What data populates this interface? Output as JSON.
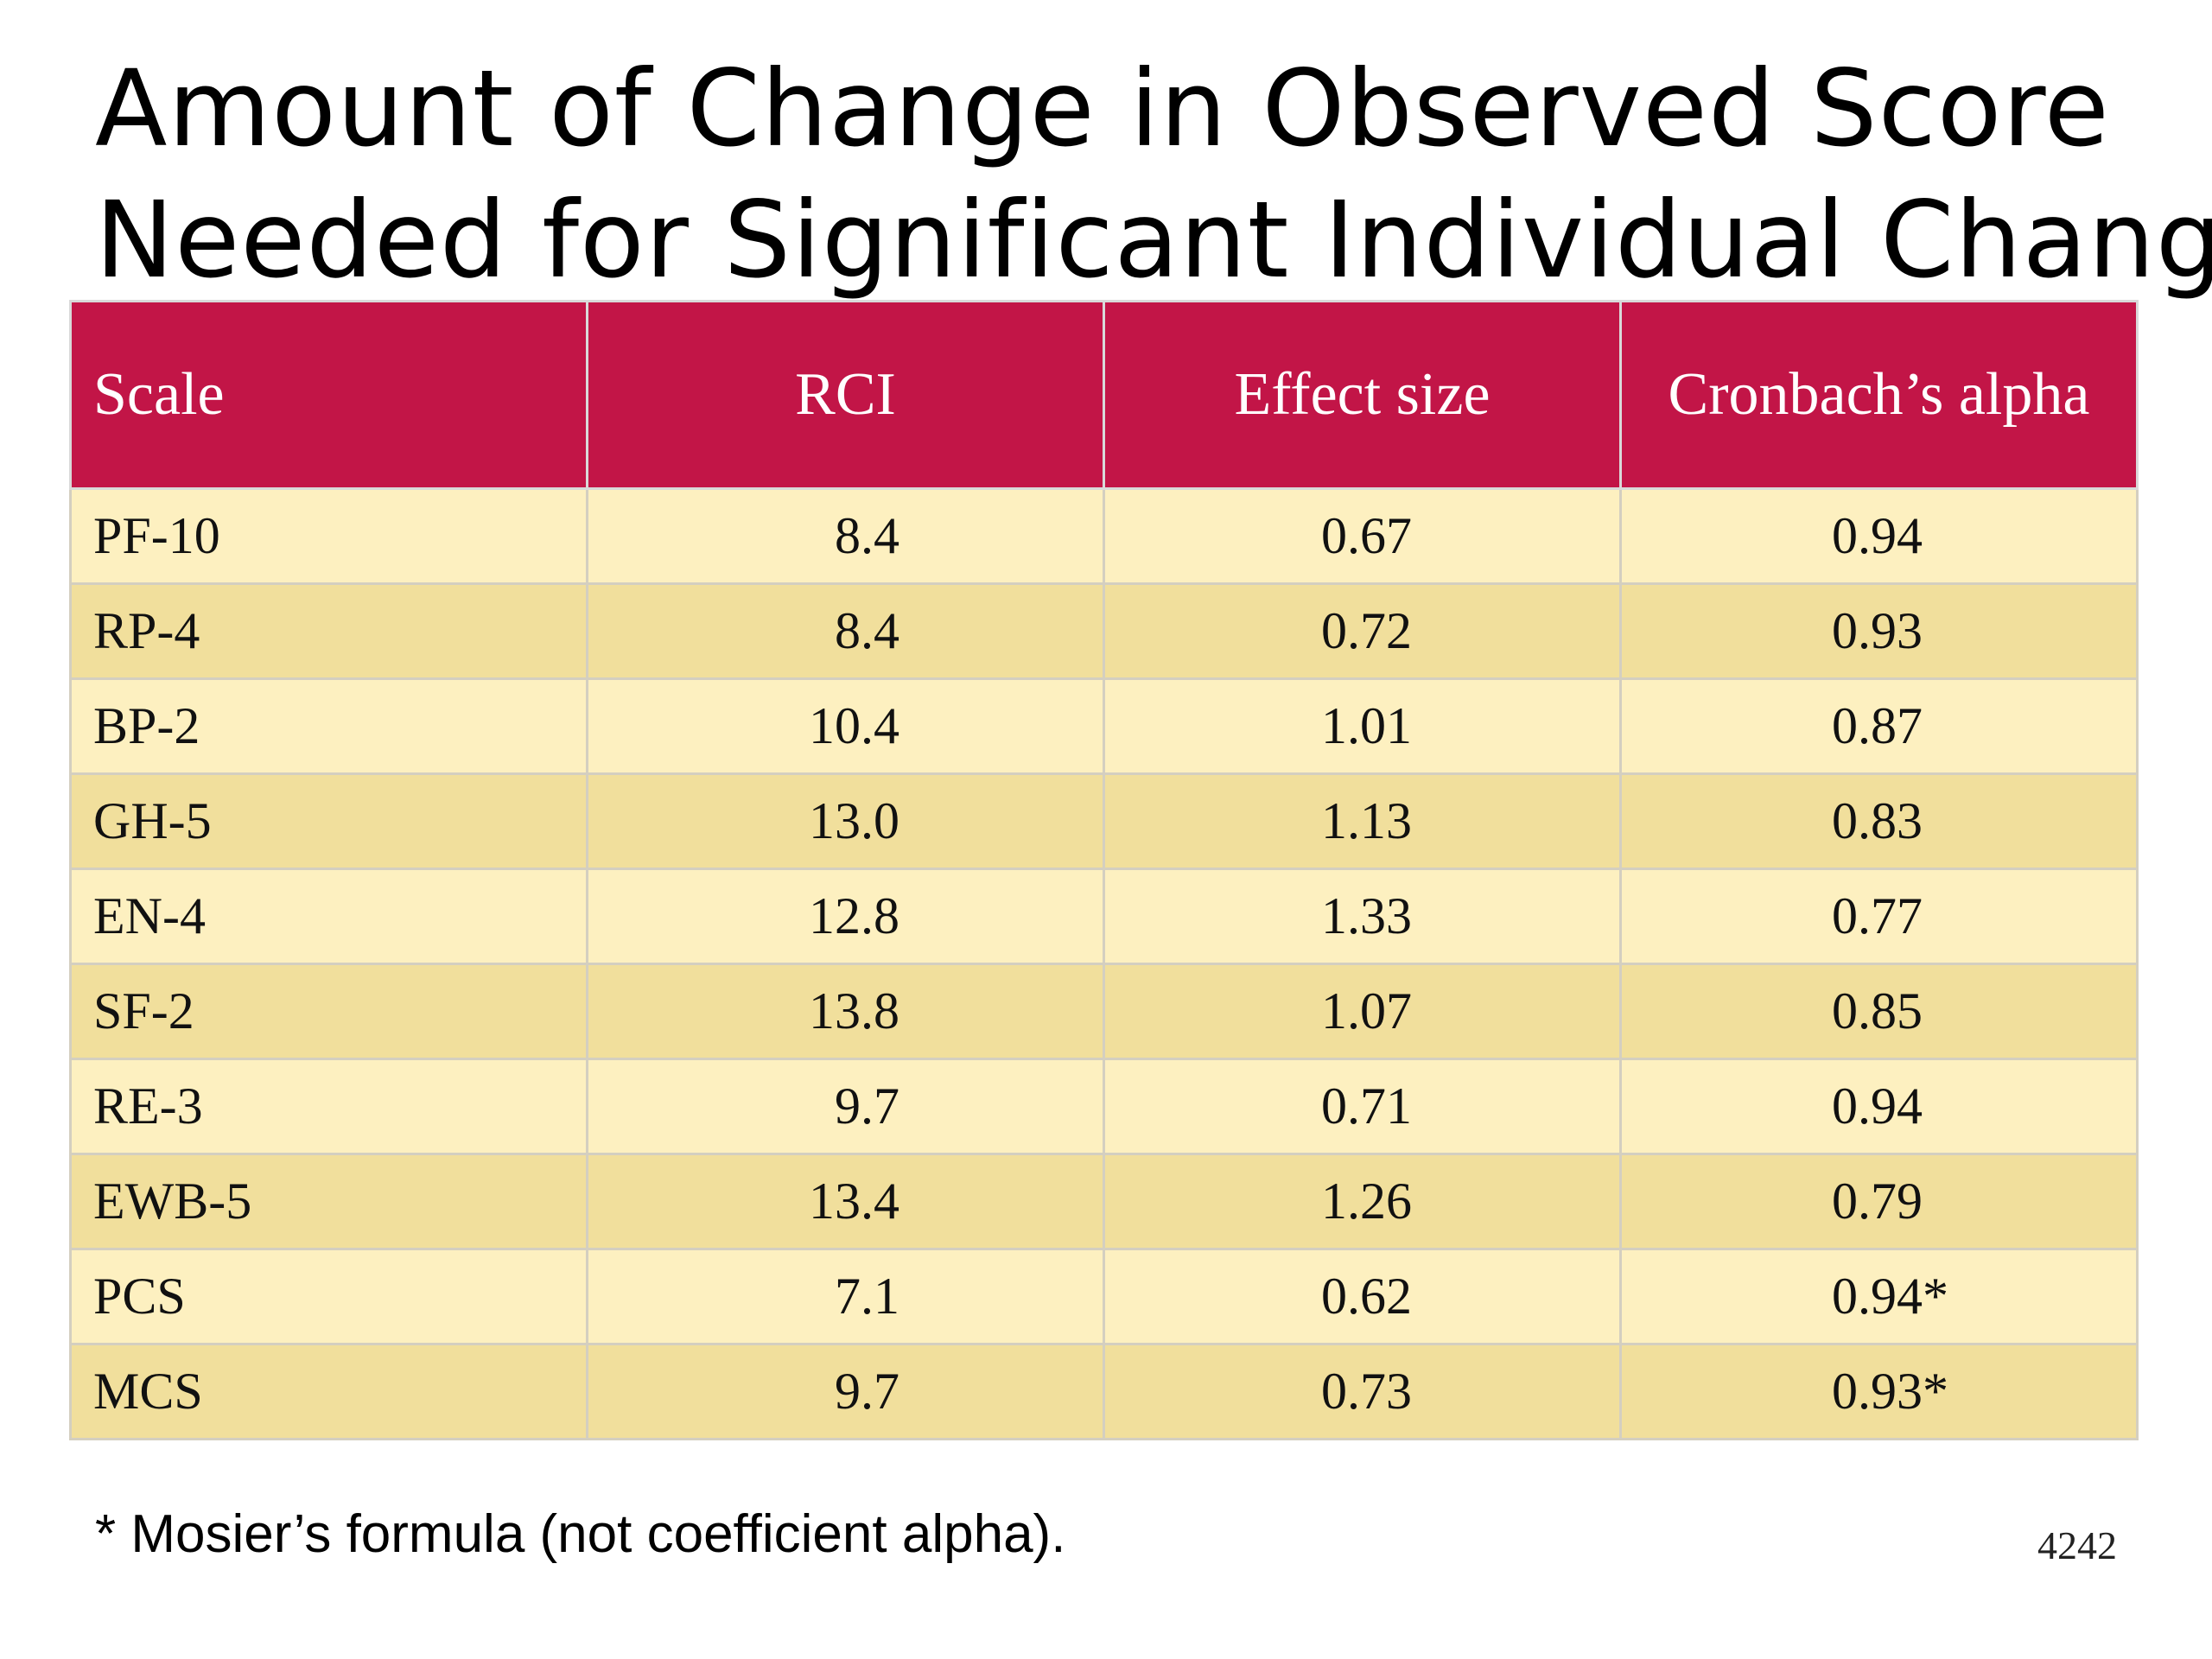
{
  "title": {
    "line1": "Amount of Change in Observed Score",
    "line2": "Needed for Significant Individual Change"
  },
  "table": {
    "headers": [
      "Scale",
      "RCI",
      "Effect size",
      "Cronbach’s alpha"
    ],
    "rows": [
      {
        "scale": "PF-10",
        "rci": "8.4",
        "effect": "0.67",
        "alpha": "0.94"
      },
      {
        "scale": "RP-4",
        "rci": "8.4",
        "effect": "0.72",
        "alpha": "0.93"
      },
      {
        "scale": "BP-2",
        "rci": "10.4",
        "effect": "1.01",
        "alpha": "0.87"
      },
      {
        "scale": "GH-5",
        "rci": "13.0",
        "effect": "1.13",
        "alpha": "0.83"
      },
      {
        "scale": "EN-4",
        "rci": "12.8",
        "effect": "1.33",
        "alpha": "0.77"
      },
      {
        "scale": "SF-2",
        "rci": "13.8",
        "effect": "1.07",
        "alpha": "0.85"
      },
      {
        "scale": "RE-3",
        "rci": "9.7",
        "effect": "0.71",
        "alpha": "0.94"
      },
      {
        "scale": "EWB-5",
        "rci": "13.4",
        "effect": "1.26",
        "alpha": "0.79"
      },
      {
        "scale": "PCS",
        "rci": "7.1",
        "effect": "0.62",
        "alpha": "0.94*"
      },
      {
        "scale": "MCS",
        "rci": "9.7",
        "effect": "0.73",
        "alpha": "0.93*"
      }
    ]
  },
  "footnote": "* Mosier’s formula (not coefficient alpha).",
  "slide_number": "4242",
  "colors": {
    "header_bg": "#c21547",
    "row_light": "#fdf0c0",
    "row_dark": "#f1df9c"
  }
}
